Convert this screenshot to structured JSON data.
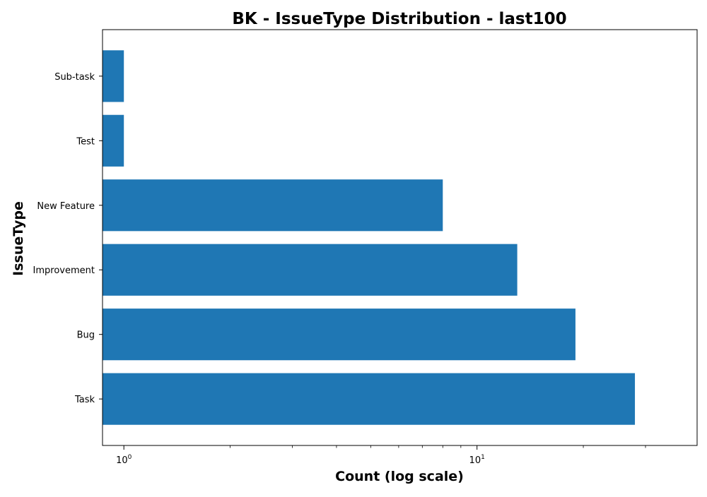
{
  "chart_data": {
    "type": "bar",
    "orientation": "horizontal",
    "title": "BK - IssueType Distribution - last100",
    "xlabel": "Count (log scale)",
    "ylabel": "IssueType",
    "x_scale": "log",
    "xlim": [
      0.87,
      42
    ],
    "x_ticks": [
      {
        "value": 1,
        "base": "10",
        "exp": "0"
      },
      {
        "value": 10,
        "base": "10",
        "exp": "1"
      }
    ],
    "x_minor_ticks": [
      2,
      3,
      4,
      5,
      6,
      7,
      8,
      9,
      20,
      30
    ],
    "categories": [
      "Task",
      "Bug",
      "Improvement",
      "New Feature",
      "Test",
      "Sub-task"
    ],
    "values": [
      28,
      19,
      13,
      8,
      1,
      1
    ],
    "bar_color": "#1f77b4",
    "grid": false,
    "legend": "none"
  }
}
